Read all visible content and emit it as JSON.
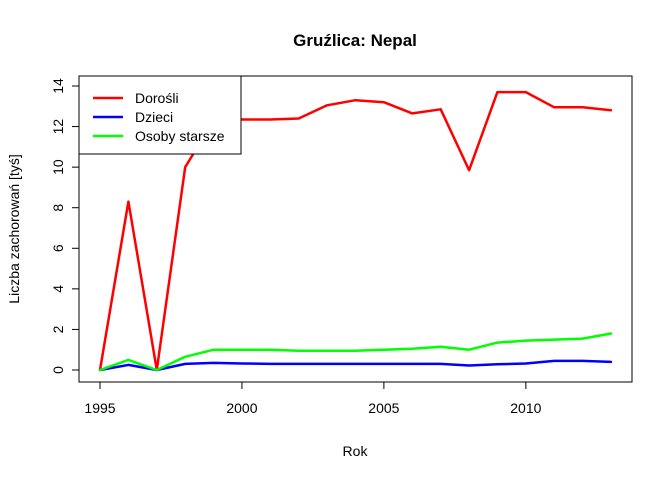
{
  "chart_data": {
    "type": "line",
    "title": "Gruźlica: Nepal",
    "xlabel": "Rok",
    "ylabel": "Liczba zachorowań [tyś]",
    "xlim": [
      1995,
      2013
    ],
    "ylim": [
      0,
      14
    ],
    "xticks": [
      1995,
      2000,
      2005,
      2010
    ],
    "yticks": [
      0,
      2,
      4,
      6,
      8,
      10,
      12,
      14
    ],
    "x": [
      1995,
      1996,
      1997,
      1998,
      1999,
      2000,
      2001,
      2002,
      2003,
      2004,
      2005,
      2006,
      2007,
      2008,
      2009,
      2010,
      2011,
      2012,
      2013
    ],
    "series": [
      {
        "name": "Dorośli",
        "color": "#ff0000",
        "values": [
          0,
          8.3,
          0,
          10.0,
          12.3,
          12.35,
          12.35,
          12.4,
          13.05,
          13.3,
          13.2,
          12.65,
          12.85,
          9.85,
          13.7,
          13.7,
          12.95,
          12.95,
          12.8
        ]
      },
      {
        "name": "Dzieci",
        "color": "#0000ff",
        "values": [
          0,
          0.25,
          0,
          0.3,
          0.35,
          0.32,
          0.3,
          0.3,
          0.3,
          0.3,
          0.3,
          0.3,
          0.3,
          0.22,
          0.28,
          0.32,
          0.45,
          0.45,
          0.4
        ]
      },
      {
        "name": "Osoby starsze",
        "color": "#00ff00",
        "values": [
          0,
          0.5,
          0,
          0.65,
          1.0,
          1.0,
          1.0,
          0.95,
          0.95,
          0.95,
          1.0,
          1.05,
          1.15,
          1.0,
          1.35,
          1.45,
          1.5,
          1.55,
          1.8
        ]
      }
    ],
    "legend_position": "top-left",
    "grid": false
  }
}
